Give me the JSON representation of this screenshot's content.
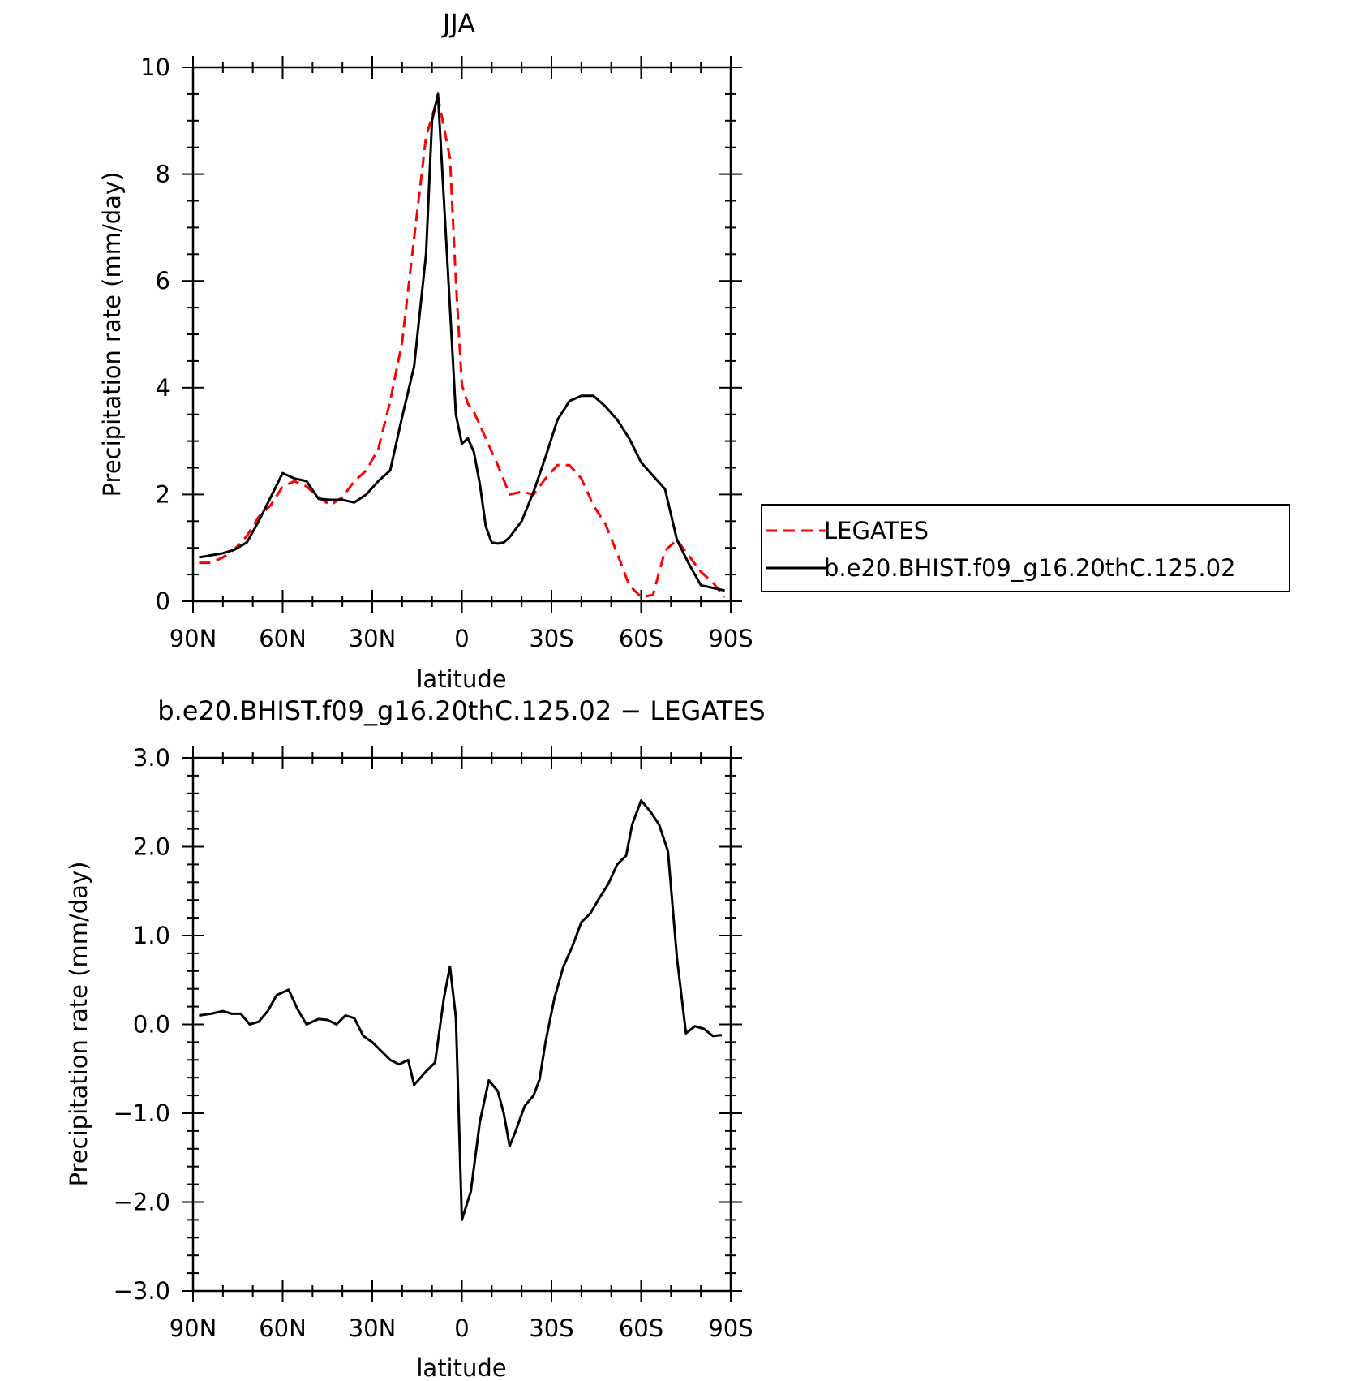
{
  "chart_data": [
    {
      "type": "line",
      "title": "JJA",
      "xlabel": "latitude",
      "ylabel": "Precipitation rate (mm/day)",
      "xlim": [
        90,
        -90
      ],
      "ylim": [
        0,
        10
      ],
      "x_ticks": [
        90,
        60,
        30,
        0,
        -30,
        -60,
        -90
      ],
      "x_tick_labels": [
        "90N",
        "60N",
        "30N",
        "0",
        "30S",
        "60S",
        "90S"
      ],
      "y_ticks": [
        0,
        2,
        4,
        6,
        8,
        10
      ],
      "y_tick_labels": [
        "0",
        "2",
        "4",
        "6",
        "8",
        "10"
      ],
      "grid": false,
      "legend_position": "right, outside plot",
      "series": [
        {
          "name": "LEGATES",
          "color": "#ff0000",
          "dash": "dashed",
          "x": [
            88,
            84,
            80,
            76,
            72,
            68,
            64,
            60,
            56,
            52,
            48,
            44,
            40,
            36,
            32,
            28,
            24,
            20,
            16,
            12,
            8,
            4,
            2,
            0,
            -2,
            -4,
            -8,
            -12,
            -16,
            -20,
            -24,
            -28,
            -32,
            -36,
            -40,
            -44,
            -48,
            -52,
            -56,
            -60,
            -64,
            -68,
            -72,
            -76,
            -80,
            -84,
            -88
          ],
          "values": [
            0.72,
            0.72,
            0.82,
            0.98,
            1.22,
            1.58,
            1.8,
            2.15,
            2.25,
            2.15,
            1.95,
            1.8,
            1.95,
            2.25,
            2.45,
            2.85,
            3.75,
            4.85,
            6.8,
            8.7,
            9.45,
            8.3,
            6.0,
            4.05,
            3.7,
            3.55,
            3.05,
            2.55,
            2.0,
            2.05,
            2.0,
            2.3,
            2.55,
            2.55,
            2.3,
            1.8,
            1.45,
            0.9,
            0.3,
            0.08,
            0.12,
            0.95,
            1.15,
            0.85,
            0.55,
            0.35,
            0.08
          ]
        },
        {
          "name": "b.e20.BHIST.f09_g16.20thC.125.02",
          "color": "#000000",
          "dash": "solid",
          "x": [
            88,
            84,
            80,
            76,
            72,
            68,
            64,
            60,
            56,
            52,
            48,
            44,
            40,
            36,
            32,
            28,
            24,
            20,
            16,
            12,
            10,
            8,
            6,
            4,
            2,
            0,
            -2,
            -4,
            -6,
            -8,
            -10,
            -12,
            -14,
            -16,
            -20,
            -24,
            -28,
            -32,
            -36,
            -40,
            -44,
            -48,
            -52,
            -56,
            -60,
            -64,
            -68,
            -72,
            -76,
            -80,
            -84,
            -88
          ],
          "values": [
            0.82,
            0.86,
            0.9,
            0.97,
            1.1,
            1.5,
            1.95,
            2.4,
            2.3,
            2.25,
            1.92,
            1.9,
            1.9,
            1.85,
            2.0,
            2.25,
            2.45,
            3.45,
            4.4,
            6.5,
            9.0,
            9.5,
            7.5,
            5.5,
            3.5,
            2.95,
            3.05,
            2.8,
            2.2,
            1.4,
            1.1,
            1.08,
            1.1,
            1.2,
            1.5,
            2.05,
            2.7,
            3.4,
            3.75,
            3.85,
            3.85,
            3.65,
            3.4,
            3.05,
            2.6,
            2.35,
            2.1,
            1.15,
            0.7,
            0.3,
            0.25,
            0.2
          ]
        }
      ]
    },
    {
      "type": "line",
      "title": "b.e20.BHIST.f09_g16.20thC.125.02 − LEGATES",
      "xlabel": "latitude",
      "ylabel": "Precipitation rate (mm/day)",
      "xlim": [
        90,
        -90
      ],
      "ylim": [
        -3.0,
        3.0
      ],
      "x_ticks": [
        90,
        60,
        30,
        0,
        -30,
        -60,
        -90
      ],
      "x_tick_labels": [
        "90N",
        "60N",
        "30N",
        "0",
        "30S",
        "60S",
        "90S"
      ],
      "y_ticks": [
        -3,
        -2,
        -1,
        0,
        1,
        2,
        3
      ],
      "y_tick_labels": [
        "−3.0",
        "−2.0",
        "−1.0",
        "0.0",
        "1.0",
        "2.0",
        "3.0"
      ],
      "grid": false,
      "series": [
        {
          "color": "#000000",
          "dash": "solid",
          "x": [
            88,
            84,
            80,
            77,
            74,
            71,
            68,
            65,
            62,
            58,
            55,
            52,
            48,
            45,
            42,
            39,
            36,
            33,
            30,
            27,
            24,
            21,
            18,
            16,
            12,
            9,
            6,
            4,
            2,
            0,
            -3,
            -6,
            -9,
            -12,
            -14,
            -16,
            -18,
            -21,
            -24,
            -26,
            -28,
            -31,
            -34,
            -37,
            -40,
            -43,
            -46,
            -49,
            -52,
            -55,
            -57,
            -60,
            -63,
            -66,
            -69,
            -72,
            -75,
            -78,
            -81,
            -84,
            -87
          ],
          "values": [
            0.1,
            0.12,
            0.15,
            0.12,
            0.12,
            0.0,
            0.03,
            0.15,
            0.33,
            0.39,
            0.17,
            0.0,
            0.06,
            0.05,
            0.0,
            0.1,
            0.07,
            -0.13,
            -0.2,
            -0.3,
            -0.4,
            -0.45,
            -0.4,
            -0.68,
            -0.53,
            -0.43,
            0.3,
            0.65,
            0.08,
            -2.2,
            -1.88,
            -1.1,
            -0.63,
            -0.75,
            -1.0,
            -1.37,
            -1.2,
            -0.92,
            -0.8,
            -0.62,
            -0.2,
            0.3,
            0.65,
            0.88,
            1.15,
            1.25,
            1.42,
            1.58,
            1.8,
            1.9,
            2.25,
            2.52,
            2.4,
            2.25,
            1.95,
            0.75,
            -0.1,
            -0.02,
            -0.05,
            -0.13,
            -0.12
          ]
        }
      ]
    }
  ]
}
